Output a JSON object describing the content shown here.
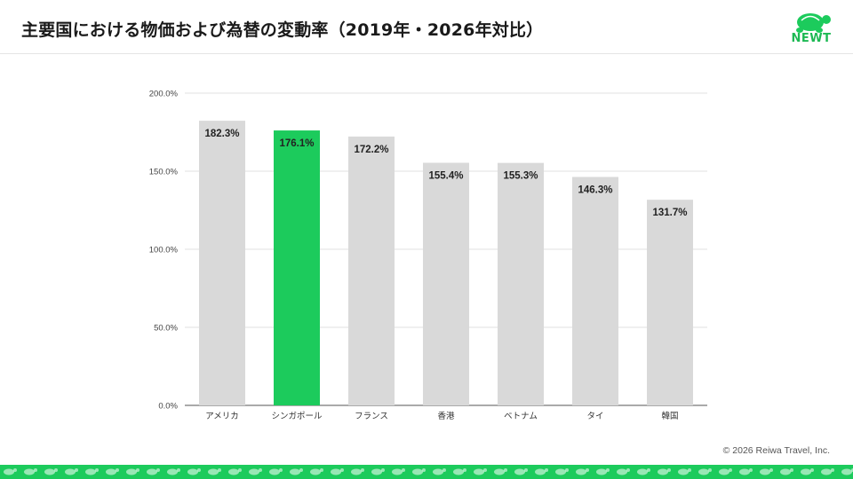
{
  "header": {
    "title": "主要国における物価および為替の変動率（2019年・2026年対比）",
    "logo_text": "NEWT",
    "logo_icon": "turtle-icon"
  },
  "colors": {
    "accent": "#1ccb5c",
    "highlight_bar": "#1ccb5c",
    "default_bar": "#d9d9d9",
    "gridline": "#e0e0e0"
  },
  "chart_data": {
    "type": "bar",
    "categories": [
      "アメリカ",
      "シンガポール",
      "フランス",
      "香港",
      "ベトナム",
      "タイ",
      "韓国"
    ],
    "values": [
      182.3,
      176.1,
      172.2,
      155.4,
      155.3,
      146.3,
      131.7
    ],
    "data_labels": [
      "182.3%",
      "176.1%",
      "172.2%",
      "155.4%",
      "155.3%",
      "146.3%",
      "131.7%"
    ],
    "highlight_category": "シンガポール",
    "title": "",
    "xlabel": "",
    "ylabel": "",
    "ylim": [
      0,
      200
    ],
    "yticks": [
      0,
      50,
      100,
      150,
      200
    ],
    "ytick_labels": [
      "0.0%",
      "50.0%",
      "100.0%",
      "150.0%",
      "200.0%"
    ],
    "grid": true,
    "legend": "none"
  },
  "footer": {
    "copyright": "© 2026 Reiwa Travel, Inc."
  }
}
